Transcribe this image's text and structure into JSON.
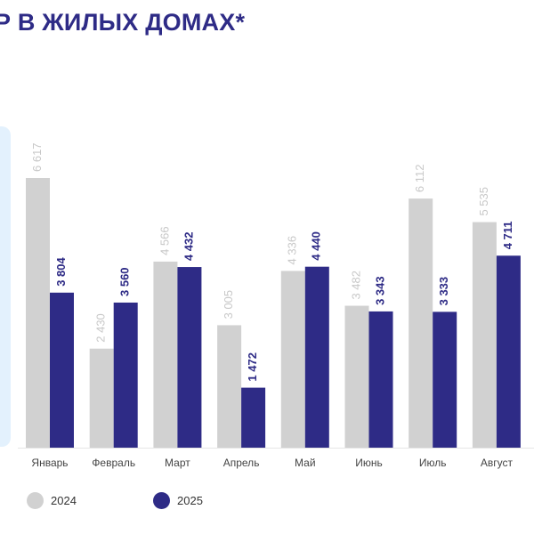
{
  "title": "Р В ЖИЛЫХ ДОМАХ*",
  "colors": {
    "title": "#2e2b86",
    "series_2024": "#d1d1d1",
    "series_2025": "#2e2b86",
    "label_2024": "#c8c8c8",
    "label_2025": "#2e2b86",
    "panel": "#e3f1fd"
  },
  "chart_data": {
    "type": "bar",
    "title": "Р В ЖИЛЫХ ДОМАХ*",
    "categories": [
      "Январь",
      "Февраль",
      "Март",
      "Апрель",
      "Май",
      "Июнь",
      "Июль",
      "Август"
    ],
    "series": [
      {
        "name": "2024",
        "values": [
          6617,
          2430,
          4566,
          3005,
          4336,
          3482,
          6112,
          5535
        ],
        "labels": [
          "6 617",
          "2 430",
          "4 566",
          "3 005",
          "4 336",
          "3 482",
          "6 112",
          "5 535"
        ]
      },
      {
        "name": "2025",
        "values": [
          3804,
          3560,
          4432,
          1472,
          4440,
          3343,
          3333,
          4711
        ],
        "labels": [
          "3 804",
          "3 560",
          "4 432",
          "1 472",
          "4 440",
          "3 343",
          "3 333",
          "4 711"
        ]
      }
    ],
    "ylim": [
      0,
      6617
    ],
    "grid": false,
    "legend_position": "bottom-left"
  }
}
